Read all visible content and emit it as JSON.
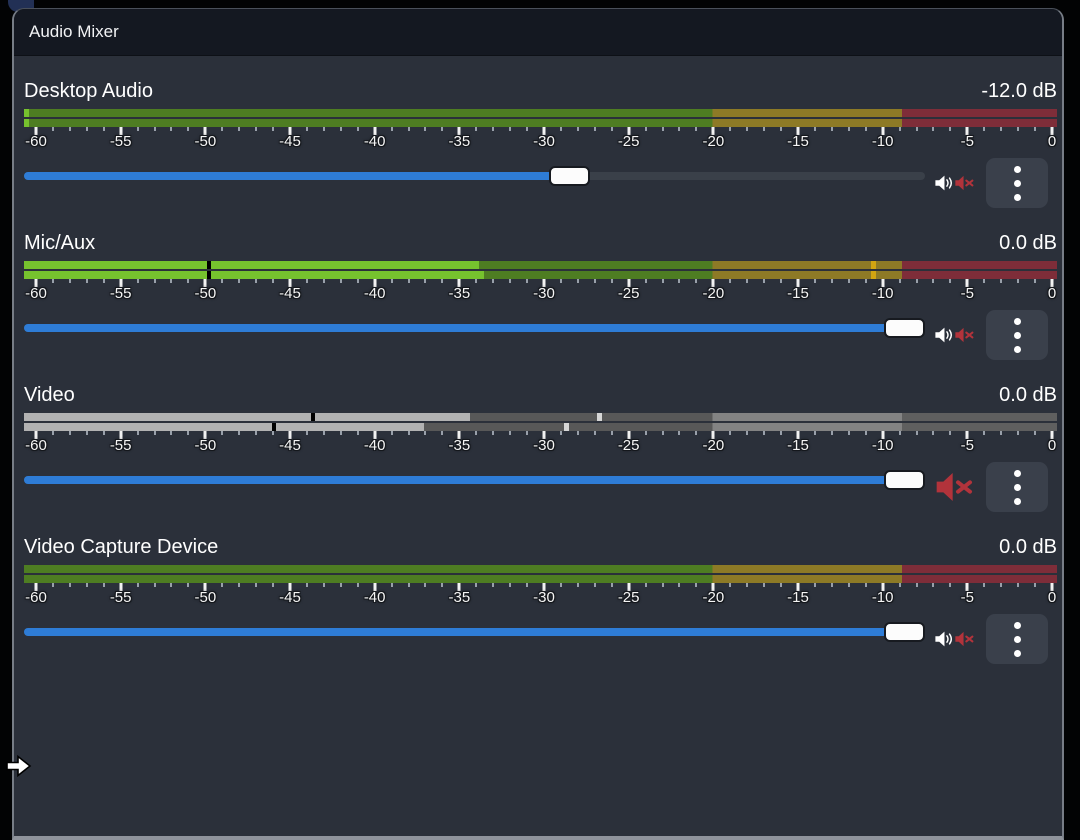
{
  "window": {
    "title": "Audio Mixer"
  },
  "meter_scale": {
    "min_db": -60,
    "max_db": 0,
    "minor_step": 1,
    "major_step": 5,
    "tick_labels": [
      "-60",
      "-55",
      "-50",
      "-45",
      "-40",
      "-35",
      "-30",
      "-25",
      "-20",
      "-15",
      "-10",
      "-5",
      "0"
    ],
    "zone_bounds": [
      [
        -60,
        -20
      ],
      [
        -20,
        -9
      ],
      [
        -9,
        0
      ]
    ],
    "zone_colors": [
      "#4e7d22",
      "#8d7a26",
      "#7e2d39"
    ],
    "zone_colors_muted": [
      "#585858",
      "#838383",
      "#5f5f5f"
    ],
    "fill_color": "#76c22e",
    "fill_color_muted": "#b2b2b2",
    "peak_color": "#d2a511",
    "peak_color_muted": "#d6d6d6",
    "vu_tick_color": "#000000"
  },
  "slider": {
    "accent_color": "#2e7cd6",
    "track_color": "#3a4049"
  },
  "channels": [
    {
      "name": "Desktop Audio",
      "level_text": "-12.0 dB",
      "muted": false,
      "volume_slider_pct": 61,
      "bars": [
        {
          "fill_pct": 0.5,
          "vu_pct": null,
          "peak_pct": null
        },
        {
          "fill_pct": 0.5,
          "vu_pct": null,
          "peak_pct": null
        }
      ],
      "input_square": false
    },
    {
      "name": "Mic/Aux",
      "level_text": "0.0 dB",
      "muted": false,
      "volume_slider_pct": 100,
      "bars": [
        {
          "fill_pct": 44.0,
          "vu_pct": 17.7,
          "peak_pct": 82.0
        },
        {
          "fill_pct": 44.5,
          "vu_pct": 17.7,
          "peak_pct": 82.0
        }
      ],
      "input_square": false
    },
    {
      "name": "Video",
      "level_text": "0.0 dB",
      "muted": true,
      "volume_slider_pct": 100,
      "bars": [
        {
          "fill_pct": 43.2,
          "vu_pct": 27.8,
          "peak_pct": 55.5
        },
        {
          "fill_pct": 38.7,
          "vu_pct": 24.0,
          "peak_pct": 52.3
        }
      ],
      "input_square": true
    },
    {
      "name": "Video Capture Device",
      "level_text": "0.0 dB",
      "muted": false,
      "volume_slider_pct": 100,
      "bars": [
        {
          "fill_pct": 0,
          "vu_pct": null,
          "peak_pct": null
        },
        {
          "fill_pct": 0,
          "vu_pct": null,
          "peak_pct": null
        }
      ],
      "input_square": false
    }
  ],
  "icons": {
    "volume_on": "speaker-icon",
    "volume_muted": "speaker-muted-icon",
    "menu": "kebab-menu-icon",
    "cursor": "arrow-right-cursor-icon"
  }
}
